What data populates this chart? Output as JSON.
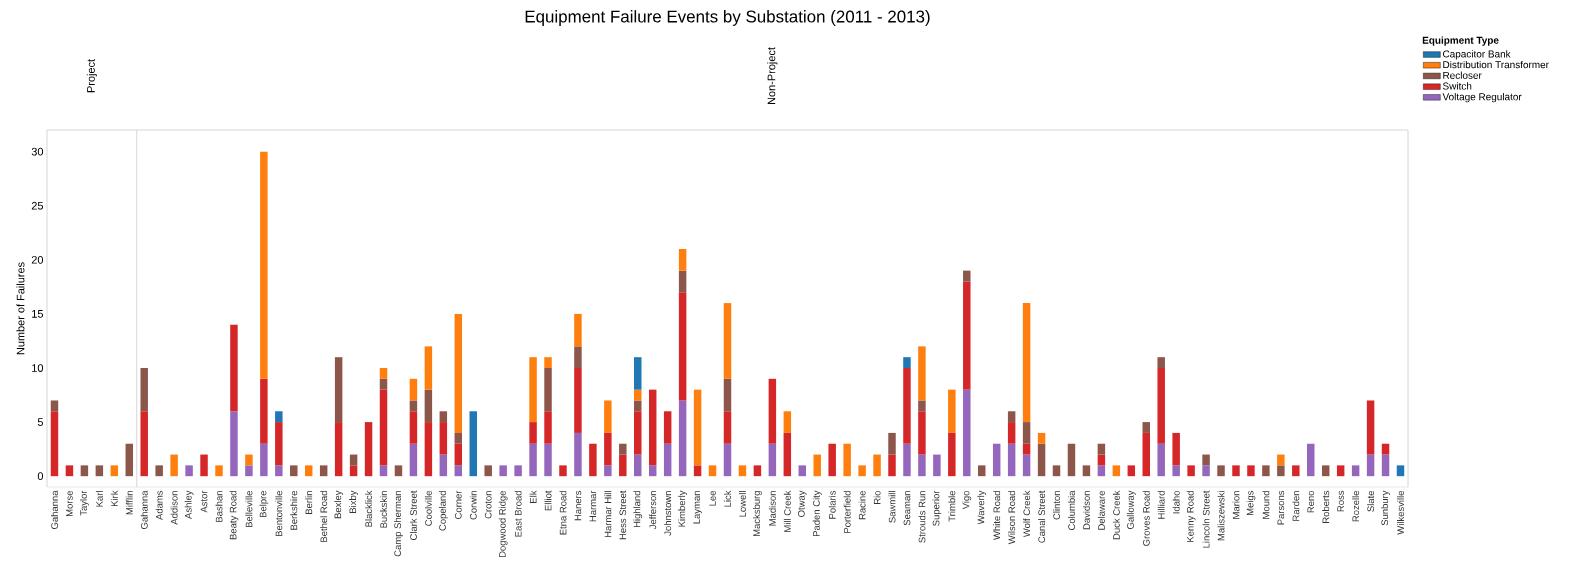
{
  "chart_data": [
    {
      "type": "bar",
      "subtitle": "Project",
      "ylabel": "Number of Failures",
      "stacked": true,
      "categories": [
        "Gahanna",
        "Morse",
        "Taylor",
        "Karl",
        "Kirk",
        "Mifflin"
      ],
      "ylim": [
        -1,
        32
      ],
      "yticks": [
        0,
        5,
        10,
        15,
        20,
        25,
        30
      ],
      "series": [
        {
          "color": "#9467bd",
          "values": [
            null,
            null,
            null,
            null,
            null,
            null
          ]
        },
        {
          "color": "#d62728",
          "values": [
            6,
            1,
            null,
            null,
            null,
            null
          ]
        },
        {
          "color": "#8c564b",
          "values": [
            1,
            null,
            1,
            1,
            null,
            3
          ]
        },
        {
          "color": "#ff7f0e",
          "values": [
            null,
            null,
            null,
            null,
            1,
            null
          ]
        },
        {
          "color": "#1f77b4",
          "values": [
            null,
            null,
            null,
            null,
            null,
            null
          ]
        }
      ]
    },
    {
      "type": "bar",
      "title": "Equipment Failure Events by Substation (2011 - 2013)",
      "subtitle": "Non-Project",
      "stacked": true,
      "tick_labels": "x",
      "legend": "top right",
      "legend_title": "Equipment Type",
      "categories": [
        "Gahanna",
        "Adams",
        "Addison",
        "Ashley",
        "Astor",
        "Bashan",
        "Beaty Road",
        "Belleville",
        "Belpre",
        "Bentonville",
        "Berkshire",
        "Berlin",
        "Bethel Road",
        "Bexley",
        "Bixby",
        "Blacklick",
        "Buckskin",
        "Camp Sherman",
        "Clark Street",
        "Coolville",
        "Copeland",
        "Corner",
        "Corwin",
        "Croton",
        "Dogwood Ridge",
        "East Broad",
        "Elk",
        "Elliot",
        "Etna Road",
        "Haners",
        "Harmar",
        "Harmar Hill",
        "Hess Street",
        "Highland",
        "Jefferson",
        "Johnstown",
        "Kimberly",
        "Layman",
        "Lee",
        "Lick",
        "Lowell",
        "Macksburg",
        "Madison",
        "Mill Creek",
        "Otway",
        "Paden City",
        "Polaris",
        "Porterfield",
        "Racine",
        "Rio",
        "Sawmill",
        "Seaman",
        "Strouds Run",
        "Superior",
        "Trimble",
        "Vigo",
        "Waverly",
        "White Road",
        "Wilson Road",
        "Wolf Creek",
        "Canal Street",
        "Clinton",
        "Columbia",
        "Davidson",
        "Delaware",
        "Duck Creek",
        "Galloway",
        "Groves Road",
        "Hilliard",
        "Idaho",
        "Kenny Road",
        "Lincoln Street",
        "Maliszewski",
        "Marion",
        "Meigs",
        "Mound",
        "Parsons",
        "Rarden",
        "Reno",
        "Roberts",
        "Ross",
        "Rozelle",
        "Slate",
        "Sunbury",
        "Wilkesville"
      ],
      "ylim": [
        -1,
        32
      ],
      "series": [
        {
          "name": "Voltage Regulator",
          "color": "#9467bd",
          "values": [
            null,
            null,
            null,
            1,
            null,
            null,
            6,
            1,
            3,
            1,
            null,
            null,
            null,
            null,
            null,
            null,
            1,
            null,
            3,
            null,
            2,
            1,
            null,
            null,
            1,
            1,
            3,
            3,
            null,
            4,
            null,
            1,
            null,
            2,
            1,
            3,
            7,
            null,
            null,
            3,
            null,
            null,
            3,
            null,
            1,
            null,
            null,
            null,
            null,
            null,
            null,
            3,
            2,
            2,
            null,
            8,
            null,
            3,
            3,
            2,
            null,
            null,
            null,
            null,
            1,
            null,
            null,
            null,
            3,
            1,
            null,
            1,
            null,
            null,
            null,
            null,
            null,
            null,
            3,
            null,
            null,
            1,
            2,
            2,
            null
          ]
        },
        {
          "name": "Switch",
          "color": "#d62728",
          "values": [
            6,
            null,
            null,
            null,
            2,
            null,
            8,
            null,
            6,
            4,
            null,
            null,
            null,
            5,
            1,
            5,
            7,
            null,
            3,
            5,
            3,
            2,
            null,
            null,
            null,
            null,
            2,
            3,
            1,
            6,
            3,
            3,
            2,
            4,
            7,
            3,
            10,
            1,
            null,
            3,
            null,
            1,
            6,
            4,
            null,
            null,
            3,
            null,
            null,
            null,
            2,
            7,
            4,
            null,
            4,
            10,
            null,
            null,
            2,
            1,
            null,
            null,
            null,
            null,
            1,
            null,
            1,
            4,
            7,
            3,
            1,
            null,
            null,
            1,
            1,
            null,
            null,
            1,
            null,
            null,
            1,
            null,
            5,
            1,
            null
          ]
        },
        {
          "name": "Recloser",
          "color": "#8c564b",
          "values": [
            4,
            1,
            null,
            null,
            null,
            null,
            null,
            null,
            null,
            null,
            1,
            null,
            1,
            6,
            1,
            null,
            1,
            1,
            1,
            3,
            1,
            1,
            null,
            1,
            null,
            null,
            null,
            4,
            null,
            2,
            null,
            null,
            1,
            1,
            null,
            null,
            2,
            null,
            null,
            3,
            null,
            null,
            null,
            null,
            null,
            null,
            null,
            null,
            null,
            null,
            2,
            null,
            1,
            null,
            null,
            1,
            1,
            null,
            1,
            2,
            3,
            1,
            3,
            1,
            1,
            null,
            null,
            1,
            1,
            null,
            null,
            1,
            1,
            null,
            null,
            1,
            1,
            null,
            null,
            1,
            null,
            null,
            null,
            null,
            null
          ]
        },
        {
          "name": "Distribution Transformer",
          "color": "#ff7f0e",
          "values": [
            null,
            null,
            2,
            null,
            null,
            1,
            null,
            1,
            21,
            null,
            null,
            1,
            null,
            null,
            null,
            null,
            1,
            null,
            2,
            4,
            null,
            11,
            null,
            null,
            null,
            null,
            6,
            1,
            null,
            3,
            null,
            3,
            null,
            1,
            null,
            null,
            2,
            7,
            1,
            7,
            1,
            null,
            null,
            2,
            null,
            2,
            null,
            3,
            1,
            2,
            null,
            null,
            5,
            null,
            4,
            null,
            null,
            null,
            null,
            11,
            1,
            null,
            null,
            null,
            null,
            1,
            null,
            null,
            null,
            null,
            null,
            null,
            null,
            null,
            null,
            null,
            1,
            null,
            null,
            null,
            null,
            null,
            null,
            null,
            null
          ]
        },
        {
          "name": "Capacitor Bank",
          "color": "#1f77b4",
          "values": [
            null,
            null,
            null,
            null,
            null,
            null,
            null,
            null,
            null,
            1,
            null,
            null,
            null,
            null,
            null,
            null,
            null,
            null,
            null,
            null,
            null,
            null,
            6,
            null,
            null,
            null,
            null,
            null,
            null,
            null,
            null,
            null,
            null,
            3,
            null,
            null,
            null,
            null,
            null,
            null,
            null,
            null,
            null,
            null,
            null,
            null,
            null,
            null,
            null,
            null,
            null,
            1,
            null,
            null,
            null,
            null,
            null,
            null,
            null,
            null,
            null,
            null,
            null,
            null,
            null,
            null,
            null,
            null,
            null,
            null,
            null,
            null,
            null,
            null,
            null,
            null,
            null,
            null,
            null,
            null,
            null,
            null,
            null,
            null,
            1
          ]
        }
      ]
    }
  ]
}
